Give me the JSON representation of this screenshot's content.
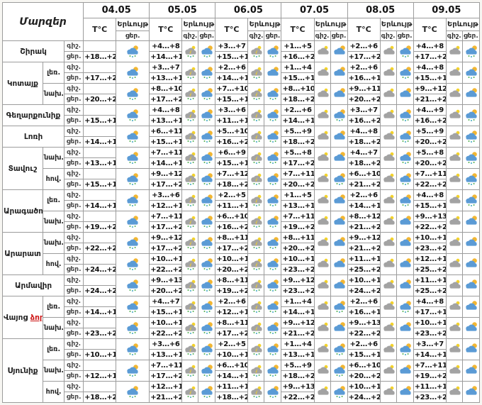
{
  "table": {
    "corner_label": "Մարզեր",
    "dates": [
      "04.05",
      "05.05",
      "06.05",
      "07.05",
      "08.05",
      "09.05"
    ],
    "temp_label": "T°C",
    "weather_label": "Երևույթ",
    "night_abbr": "գիշ.",
    "day_abbr": "ցեր.",
    "icon_legend": {
      "dr": "sun-cloud-rain",
      "dc": "sun-cloud",
      "nr": "storm-cloud-rain",
      "nc": "night-cloud"
    },
    "colors": {
      "border": "#9c9c9c",
      "sun": "#f2b632",
      "day_cloud": "#5b9bd5",
      "night_cloud": "#a3a3a3",
      "rain_drop_green": "#4fae4f",
      "rain_drop_blue": "#3fa7c0",
      "lightning": "#f3d22b",
      "red_text": "#cc1111"
    },
    "regions": [
      {
        "name": "Շիրակ",
        "parts": [
          {
            "zone": "",
            "day0": [
              "+18...+22",
              "dr"
            ],
            "cols": [
              [
                "+4...+8",
                "+14...+18",
                "nr",
                "dr"
              ],
              [
                "+3...+7",
                "+15...+19",
                "nr",
                "dr"
              ],
              [
                "+1...+5",
                "+16...+21",
                "nc",
                "dc"
              ],
              [
                "+2...+6",
                "+17...+21",
                "nc",
                "dr"
              ],
              [
                "+4...+8",
                "+17...+21",
                "nc",
                "dr"
              ]
            ]
          }
        ]
      },
      {
        "name": "Կոտայք",
        "parts": [
          {
            "zone": "լեռ.",
            "day0": [
              "+17...+20",
              "dr"
            ],
            "cols": [
              [
                "+3...+7",
                "+13...+16",
                "nr",
                "dr"
              ],
              [
                "+2...+6",
                "+14...+16",
                "nr",
                "dc"
              ],
              [
                "+1...+4",
                "+15...+18",
                "nc",
                "dc"
              ],
              [
                "+2...+6",
                "+16...+19",
                "nc",
                "dr"
              ],
              [
                "+4...+8",
                "+15...+19",
                "nc",
                "dr"
              ]
            ]
          },
          {
            "zone": "նախ.",
            "day0": [
              "+20...+23",
              "dr"
            ],
            "cols": [
              [
                "+8...+10",
                "+17...+21",
                "nr",
                "dr"
              ],
              [
                "+7...+10",
                "+15...+19",
                "nr",
                "dr"
              ],
              [
                "+8...+10",
                "+18...+22",
                "nc",
                "dc"
              ],
              [
                "+9...+11",
                "+20...+24",
                "nc",
                "dc"
              ],
              [
                "+9...+12",
                "+21...+24",
                "nc",
                "dc"
              ]
            ]
          }
        ]
      },
      {
        "name": "Գեղարքունիք",
        "parts": [
          {
            "zone": "",
            "day0": [
              "+15...+19",
              "dr"
            ],
            "cols": [
              [
                "+4...+8",
                "+13...+18",
                "nr",
                "dr"
              ],
              [
                "+3...+6",
                "+11...+16",
                "nr",
                "dr"
              ],
              [
                "+2...+6",
                "+14...+19",
                "nc",
                "dr"
              ],
              [
                "+3...+7",
                "+16...+20",
                "nc",
                "dr"
              ],
              [
                "+4...+9",
                "+16...+20",
                "nc",
                "dr"
              ]
            ]
          }
        ]
      },
      {
        "name": "Լոռի",
        "parts": [
          {
            "zone": "",
            "day0": [
              "+14...+18",
              "dr"
            ],
            "cols": [
              [
                "+6...+11",
                "+15...+19",
                "nr",
                "dr"
              ],
              [
                "+5...+10",
                "+16...+20",
                "nr",
                "dr"
              ],
              [
                "+5...+9",
                "+18...+22",
                "nc",
                "dc"
              ],
              [
                "+4...+8",
                "+18...+22",
                "nc",
                "dr"
              ],
              [
                "+5...+9",
                "+20...+24",
                "nc",
                "dr"
              ]
            ]
          }
        ]
      },
      {
        "name": "Տավուշ",
        "parts": [
          {
            "zone": "նախ.",
            "day0": [
              "+13...+16",
              "dr"
            ],
            "cols": [
              [
                "+7...+11",
                "+14...+18",
                "nr",
                "dr"
              ],
              [
                "+6...+9",
                "+15...+19",
                "nr",
                "dr"
              ],
              [
                "+5...+8",
                "+17...+21",
                "nc",
                "dc"
              ],
              [
                "+4...+7",
                "+18...+21",
                "nc",
                "dr"
              ],
              [
                "+5...+8",
                "+20...+23",
                "nc",
                "dr"
              ]
            ]
          },
          {
            "zone": "հով.",
            "day0": [
              "+15...+19",
              "dr"
            ],
            "cols": [
              [
                "+9...+12",
                "+17...+21",
                "nr",
                "dr"
              ],
              [
                "+7...+12",
                "+18...+21",
                "nr",
                "dr"
              ],
              [
                "+7...+11",
                "+20...+24",
                "nc",
                "dr"
              ],
              [
                "+6...+10",
                "+21...+24",
                "nc",
                "dr"
              ],
              [
                "+7...+11",
                "+22...+25",
                "nc",
                "dr"
              ]
            ]
          }
        ]
      },
      {
        "name": "Արագածոտն",
        "parts": [
          {
            "zone": "լեռ.",
            "day0": [
              "+14...+18",
              "dr"
            ],
            "cols": [
              [
                "+3...+6",
                "+12...+15",
                "nr",
                "dr"
              ],
              [
                "+2...+5",
                "+11...+14",
                "nr",
                "dr"
              ],
              [
                "+1...+5",
                "+13...+17",
                "nc",
                "dc"
              ],
              [
                "+2...+6",
                "+14...+18",
                "nc",
                "dr"
              ],
              [
                "+4...+8",
                "+15...+18",
                "nc",
                "dr"
              ]
            ]
          },
          {
            "zone": "նախ.",
            "day0": [
              "+19...+24",
              "dr"
            ],
            "cols": [
              [
                "+7...+11",
                "+17...+22",
                "nr",
                "dr"
              ],
              [
                "+6...+10",
                "+16...+20",
                "nr",
                "dr"
              ],
              [
                "+7...+11",
                "+19...+23",
                "nc",
                "dc"
              ],
              [
                "+8...+12",
                "+21...+24",
                "nc",
                "dc"
              ],
              [
                "+9...+13",
                "+22...+25",
                "nc",
                "dc"
              ]
            ]
          }
        ]
      },
      {
        "name": "Արարատ",
        "parts": [
          {
            "zone": "նախ.",
            "day0": [
              "+22...+24",
              "dr"
            ],
            "cols": [
              [
                "+9...+12",
                "+17...+21",
                "nr",
                "dr"
              ],
              [
                "+8...+11",
                "+17...+20",
                "nr",
                "dr"
              ],
              [
                "+8...+11",
                "+20...+23",
                "nc",
                "dc"
              ],
              [
                "+9...+12",
                "+21...+24",
                "nc",
                "dc"
              ],
              [
                "+10...+13",
                "+23...+25",
                "nc",
                "dc"
              ]
            ]
          },
          {
            "zone": "հով.",
            "day0": [
              "+24...+26",
              "dr"
            ],
            "cols": [
              [
                "+10...+14",
                "+22...+24",
                "nr",
                "dr"
              ],
              [
                "+10...+12",
                "+20...+22",
                "nr",
                "dr"
              ],
              [
                "+10...+13",
                "+23...+25",
                "nc",
                "dc"
              ],
              [
                "+11...+14",
                "+25...+27",
                "nc",
                "dc"
              ],
              [
                "+12...+15",
                "+25...+28",
                "nc",
                "dc"
              ]
            ]
          }
        ]
      },
      {
        "name": "Արմավիր",
        "parts": [
          {
            "zone": "",
            "day0": [
              "+24...+26",
              "dr"
            ],
            "cols": [
              [
                "+9...+13",
                "+20...+23",
                "nr",
                "dr"
              ],
              [
                "+8...+11",
                "+19...+22",
                "nr",
                "dr"
              ],
              [
                "+9...+12",
                "+23...+25",
                "nc",
                "dc"
              ],
              [
                "+10...+12",
                "+24...+26",
                "nc",
                "dc"
              ],
              [
                "+11...+13",
                "+25...+27",
                "nc",
                "dc"
              ]
            ]
          }
        ]
      },
      {
        "name": "Վայոց",
        "name_red": "ձոր",
        "parts": [
          {
            "zone": "լեռ.",
            "day0": [
              "+14...+18",
              "dr"
            ],
            "cols": [
              [
                "+4...+7",
                "+15...+19",
                "nr",
                "dr"
              ],
              [
                "+2...+6",
                "+12...+15",
                "nr",
                "dr"
              ],
              [
                "+1...+4",
                "+14...+17",
                "nc",
                "dr"
              ],
              [
                "+2...+6",
                "+16...+19",
                "nc",
                "dr"
              ],
              [
                "+4...+8",
                "+17...+19",
                "nc",
                "dc"
              ]
            ]
          },
          {
            "zone": "նախ.",
            "day0": [
              "+23...+26",
              "dr"
            ],
            "cols": [
              [
                "+10...+13",
                "+22...+24",
                "nr",
                "dr"
              ],
              [
                "+8...+11",
                "+17...+20",
                "nr",
                "dr"
              ],
              [
                "+9...+12",
                "+21...+24",
                "nc",
                "dc"
              ],
              [
                "+9...+13",
                "+22...+25",
                "nc",
                "dc"
              ],
              [
                "+10...+13",
                "+23...+26",
                "nc",
                "dc"
              ]
            ]
          }
        ]
      },
      {
        "name": "Սյունիք",
        "parts": [
          {
            "zone": "լեռ.",
            "day0": [
              "+10...+12",
              "dr"
            ],
            "cols": [
              [
                "+3...+6",
                "+13...+16",
                "nr",
                "dr"
              ],
              [
                "+2...+5",
                "+10...+13",
                "nr",
                "dr"
              ],
              [
                "+1...+4",
                "+13...+17",
                "nc",
                "dr"
              ],
              [
                "+2...+6",
                "+15...+18",
                "nc",
                "dr"
              ],
              [
                "+3...+7",
                "+14...+17",
                "nc",
                "dc"
              ]
            ]
          },
          {
            "zone": "նախ.",
            "day0": [
              "+12...+16",
              "dr"
            ],
            "cols": [
              [
                "+7...+11",
                "+17...+22",
                "nr",
                "dr"
              ],
              [
                "+6...+10",
                "+14...+18",
                "nr",
                "dr"
              ],
              [
                "+5...+9",
                "+18...+22",
                "nc",
                "dr"
              ],
              [
                "+6...+10",
                "+20...+24",
                "nc",
                "dc"
              ],
              [
                "+7...+11",
                "+19...+23",
                "nc",
                "dc"
              ]
            ]
          },
          {
            "zone": "հով.",
            "day0": [
              "+18...+22",
              "dr"
            ],
            "cols": [
              [
                "+12...+16",
                "+21...+25",
                "nr",
                "dr"
              ],
              [
                "+11...+15",
                "+18...+23",
                "nr",
                "dr"
              ],
              [
                "+9...+13",
                "+22...+25",
                "nc",
                "dr"
              ],
              [
                "+10...+14",
                "+24...+27",
                "nc",
                "dc"
              ],
              [
                "+11...+15",
                "+23...+26",
                "nc",
                "dc"
              ]
            ]
          }
        ]
      }
    ]
  }
}
